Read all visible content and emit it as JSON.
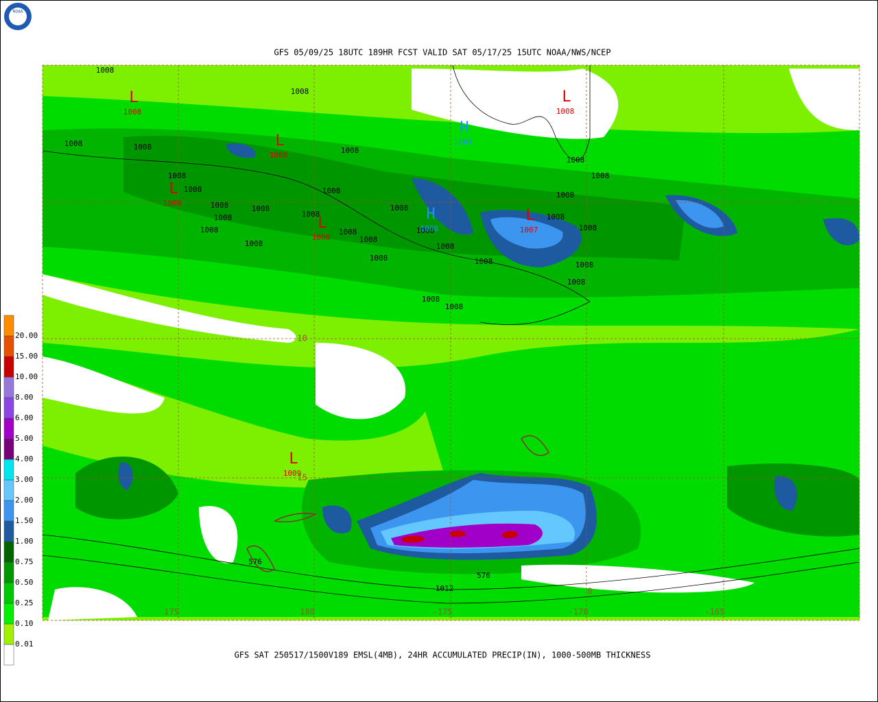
{
  "header": {
    "title": "GFS 05/09/25 18UTC 189HR FCST VALID SAT 05/17/25 15UTC NOAA/NWS/NCEP",
    "logo": "NOAA"
  },
  "footer": {
    "caption": "GFS SAT 250517/1500V189 EMSL(4MB), 24HR ACCUMULATED PRECIP(IN), 1000-500MB THICKNESS"
  },
  "legend": {
    "labels": [
      "20.00",
      "15.00",
      "10.00",
      "8.00",
      "6.00",
      "5.00",
      "4.00",
      "3.00",
      "2.00",
      "1.50",
      "1.00",
      "0.75",
      "0.50",
      "0.25",
      "0.10",
      "0.01"
    ]
  },
  "map": {
    "longitude_labels": [
      "175",
      "180",
      "-175",
      "-170",
      "-165"
    ],
    "latitude_labels": [
      "-10",
      "-15",
      "0"
    ],
    "pressure_centers": [
      {
        "letter": "L",
        "pressure": "1008"
      },
      {
        "letter": "L",
        "pressure": "1008"
      },
      {
        "letter": "L",
        "pressure": "1008"
      },
      {
        "letter": "L",
        "pressure": "1008"
      },
      {
        "letter": "H",
        "pressure": "1008"
      },
      {
        "letter": "H",
        "pressure": "1008"
      },
      {
        "letter": "L",
        "pressure": "1007"
      },
      {
        "letter": "L",
        "pressure": "1008"
      },
      {
        "letter": "L",
        "pressure": "1009"
      }
    ],
    "isobar_labels": [
      "1008",
      "1008",
      "1008",
      "1008",
      "1008",
      "1008",
      "1008",
      "1008",
      "1008",
      "1008",
      "1008",
      "1008",
      "1008",
      "1008",
      "1008",
      "1008",
      "1008",
      "1008",
      "1008",
      "1008",
      "1008",
      "1008",
      "1008",
      "1008",
      "1008",
      "1008",
      "1008",
      "1008",
      "1008",
      "1008",
      "1012"
    ],
    "thickness_labels": [
      "576",
      "576"
    ]
  }
}
